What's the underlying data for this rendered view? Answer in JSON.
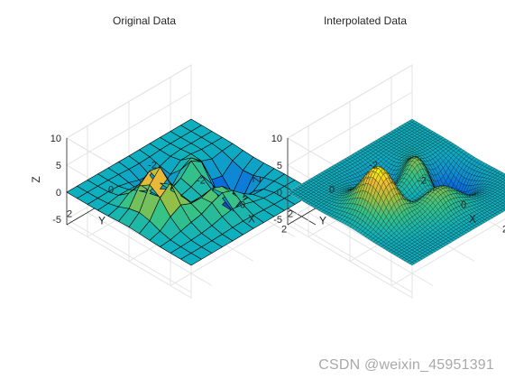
{
  "chart_data": [
    {
      "type": "surface",
      "title": "Original Data",
      "xlabel": "X",
      "ylabel": "Y",
      "zlabel": "Z",
      "xlim": [
        -3,
        3
      ],
      "ylim": [
        -3,
        3
      ],
      "zlim": [
        -6,
        10
      ],
      "x_ticks": [
        "-2",
        "0",
        "2"
      ],
      "y_ticks": [
        "-2",
        "0",
        "2"
      ],
      "z_ticks": [
        "-5",
        "0",
        "5",
        "10"
      ],
      "grid": "on",
      "colormap": "parula",
      "function": "peaks",
      "grid_points": 13,
      "edge_color": "#000000"
    },
    {
      "type": "surface",
      "title": "Interpolated Data",
      "xlabel": "X",
      "ylabel": "Y",
      "zlabel": "Z",
      "xlim": [
        -3,
        3
      ],
      "ylim": [
        -3,
        3
      ],
      "zlim": [
        -6,
        10
      ],
      "x_ticks": [
        "-2",
        "0",
        "2"
      ],
      "y_ticks": [
        "-2",
        "0",
        "2"
      ],
      "z_ticks": [
        "-5",
        "0",
        "5",
        "10"
      ],
      "grid": "on",
      "colormap": "parula",
      "function": "peaks",
      "grid_points": 49,
      "edge_color": "#000000"
    }
  ],
  "watermark": "CSDN @weixin_45951391"
}
